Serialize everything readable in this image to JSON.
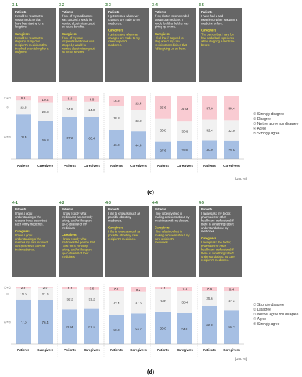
{
  "panels": [
    {
      "caption": "(c)",
      "unit": "[Unit: %]",
      "side_labels": [
        "①+②",
        "③",
        "④+⑤"
      ],
      "legend": [
        {
          "label": "① Strongly disagree",
          "color": "#f7c9cf"
        },
        {
          "label": "② Disagree",
          "color": "#fdeef0"
        },
        {
          "label": "③ Neither agree nor disagree",
          "color": "#ececec"
        },
        {
          "label": "④ Agree",
          "color": "#c6d7ee"
        },
        {
          "label": "⑤ Strongly agree",
          "color": "#9fbbe0"
        }
      ],
      "questions": [
        {
          "id": "3-1",
          "patient_head": "Patients",
          "patient_text": "I would be reluctant to stop a medicine that I have been taking for a long time.",
          "caregiver_head": "Caregivers",
          "caregiver_text": "I would be reluctant to stop any of my care recipient's medicines that they had been taking for a long time."
        },
        {
          "id": "3-2",
          "patient_head": "Patients",
          "patient_text": "If one of my medications was stopped, I would be worried about missing out on future benefits.",
          "caregiver_head": "Caregivers",
          "caregiver_text": "If one of my care recipient's medicines was stopped, I would be worried about missing out on future benefits."
        },
        {
          "id": "3-3",
          "patient_head": "Patients",
          "patient_text": "I get stressed whenever changes are made to my medicines.",
          "caregiver_head": "Caregivers",
          "caregiver_text": "I get stressed whenever changes are made to my care recipient's medicines."
        },
        {
          "id": "3-4",
          "patient_head": "Patients",
          "patient_text": "If my doctor recommended stopping a medicine, I would feel that he/she was giving up on me.",
          "caregiver_head": "Caregivers",
          "caregiver_text": "I feel that if I agreed to stop one of my care recipient's medicines that I'd be giving up on them."
        },
        {
          "id": "3-5",
          "patient_head": "Patients",
          "patient_text": "I have had a bad experience when stopping a medicine before.",
          "caregiver_head": "Caregivers",
          "caregiver_text": "The person that I care for has had a bad experience when stopping a medicine before."
        }
      ]
    },
    {
      "caption": "(d)",
      "unit": "[Unit: %]",
      "side_labels": [
        "①+②",
        "③",
        "④+⑤"
      ],
      "legend": [
        {
          "label": "① Strongly disagree",
          "color": "#f7c9cf"
        },
        {
          "label": "② Disagree",
          "color": "#fdeef0"
        },
        {
          "label": "③ Neither agree nor disagree",
          "color": "#ececec"
        },
        {
          "label": "④ Agree",
          "color": "#c6d7ee"
        },
        {
          "label": "⑤ Strongly agree",
          "color": "#9fbbe0"
        }
      ],
      "questions": [
        {
          "id": "4-1",
          "patient_head": "Patients",
          "patient_text": "I have a good understanding of the reasons I was prescribed each of my medicines.",
          "caregiver_head": "Caregivers",
          "caregiver_text": "I have a good understanding of the reasons my care recipient was prescribed each of their medicines."
        },
        {
          "id": "4-2",
          "patient_head": "Patients",
          "patient_text": "I know exactly what medicines I am currently taking, and/or I keep an up-to-date list of my medicines.",
          "caregiver_head": "Caregivers",
          "caregiver_text": "I know exactly what medicines the person that I care for is currently taking, and/or I keep an up-to-date list of their medicines."
        },
        {
          "id": "4-3",
          "patient_head": "Patients",
          "patient_text": "I like to know as much as possible about my medicines.",
          "caregiver_head": "Caregivers",
          "caregiver_text": "I like to know as much as possible about my care recipient's medicines."
        },
        {
          "id": "4-4",
          "patient_head": "Patients",
          "patient_text": "I like to be involved in making decisions about my medicines with my doctors.",
          "caregiver_head": "Caregivers",
          "caregiver_text": "I like to be involved in making decisions about my care recipient's medicines."
        },
        {
          "id": "4-5",
          "patient_head": "Patients",
          "patient_text": "I always ask my doctor, pharmacist or other healthcare professional if there is something I don't understand about my medicines.",
          "caregiver_head": "Caregivers",
          "caregiver_text": "I always ask the doctor, pharmacist or other healthcare professional if there is something I don't understand about my care recipient's medicines."
        }
      ]
    }
  ],
  "chart_data": [
    {
      "type": "bar",
      "stacked": true,
      "percent": true,
      "categories": [
        "3-1 Patients",
        "3-1 Caregivers",
        "3-2 Patients",
        "3-2 Caregivers",
        "3-3 Patients",
        "3-3 Caregivers",
        "3-4 Patients",
        "3-4 Caregivers",
        "3-5 Patients",
        "3-5 Caregivers"
      ],
      "series": [
        {
          "name": "④+⑤",
          "values": [
            70.4,
            60.8,
            67.2,
            66.4,
            46.0,
            44.4,
            27.6,
            28.8,
            30.0,
            29.6
          ]
        },
        {
          "name": "③",
          "values": [
            22.8,
            28.8,
            24.8,
            24.0,
            38.8,
            33.2,
            36.8,
            30.8,
            32.4,
            32.0
          ]
        },
        {
          "name": "①+②",
          "values": [
            6.8,
            10.4,
            8.0,
            9.6,
            15.2,
            22.4,
            35.6,
            40.4,
            37.6,
            38.4
          ]
        }
      ],
      "ylim": [
        0,
        100
      ]
    },
    {
      "type": "bar",
      "stacked": true,
      "percent": true,
      "categories": [
        "4-1 Patients",
        "4-1 Caregivers",
        "4-2 Patients",
        "4-2 Caregivers",
        "4-3 Patients",
        "4-3 Caregivers",
        "4-4 Patients",
        "4-4 Caregivers",
        "4-5 Patients",
        "4-5 Caregivers"
      ],
      "series": [
        {
          "name": "④+⑤",
          "values": [
            77.6,
            76.4,
            60.4,
            61.2,
            50.0,
            53.2,
            56.0,
            54.0,
            66.8,
            59.2
          ]
        },
        {
          "name": "③",
          "values": [
            19.6,
            21.6,
            35.2,
            33.2,
            42.4,
            37.6,
            39.6,
            38.4,
            25.6,
            32.4
          ]
        },
        {
          "name": "①+②",
          "values": [
            2.8,
            2.0,
            4.4,
            5.6,
            7.6,
            9.2,
            4.4,
            7.6,
            7.6,
            8.4
          ]
        }
      ],
      "ylim": [
        0,
        100
      ]
    }
  ],
  "colors": {
    "header_bg": "#666666",
    "caregiver_text": "#f2e33c",
    "patient_text": "#ffffff",
    "agree": "#a6bfe3",
    "neutral": "#f1f1f1",
    "disagree": "#f9cbd2",
    "id_color": "#3f7f3f"
  }
}
